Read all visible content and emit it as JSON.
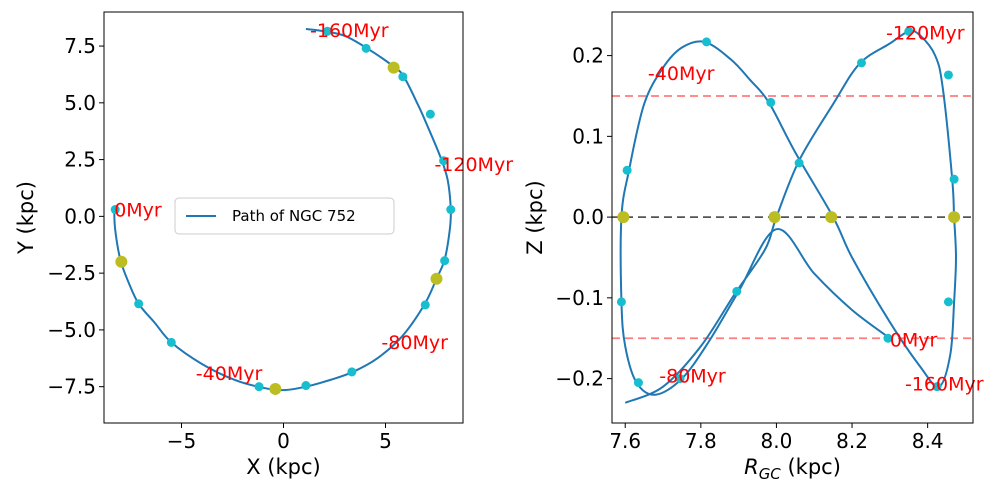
{
  "colors": {
    "path": "#1f77b4",
    "marker": "#17becf",
    "crossing": "#bcbd22",
    "annotation": "#ff0000",
    "zero_line": "#555555",
    "limit_line": "#ff6666"
  },
  "chart_data": [
    {
      "type": "line",
      "panel": "left",
      "xlabel": "X (kpc)",
      "ylabel": "Y (kpc)",
      "xlim": [
        -8.8,
        8.8
      ],
      "ylim": [
        -9.1,
        9.0
      ],
      "xticks": [
        -5,
        0,
        5
      ],
      "xtick_labels": [
        "−5",
        "0",
        "5"
      ],
      "yticks": [
        7.5,
        5.0,
        2.5,
        0.0,
        -2.5,
        -5.0,
        -7.5
      ],
      "ytick_labels": [
        "7.5",
        "5.0",
        "2.5",
        "0.0",
        "−2.5",
        "−5.0",
        "−7.5"
      ],
      "legend": {
        "label": "Path of NGC 752",
        "placement": "center"
      },
      "series": [
        {
          "name": "Path of NGC 752",
          "points": [
            [
              -8.3,
              0.3
            ],
            [
              -8.25,
              -0.6
            ],
            [
              -8.0,
              -1.9
            ],
            [
              -7.6,
              -2.9
            ],
            [
              -7.1,
              -3.85
            ],
            [
              -6.3,
              -4.7
            ],
            [
              -5.5,
              -5.55
            ],
            [
              -4.0,
              -6.5
            ],
            [
              -2.4,
              -7.2
            ],
            [
              -1.0,
              -7.55
            ],
            [
              0.0,
              -7.65
            ],
            [
              1.1,
              -7.5
            ],
            [
              2.3,
              -7.2
            ],
            [
              3.4,
              -6.85
            ],
            [
              4.6,
              -6.25
            ],
            [
              5.8,
              -5.3
            ],
            [
              6.9,
              -3.9
            ],
            [
              7.5,
              -2.75
            ],
            [
              7.9,
              -1.9
            ],
            [
              8.15,
              -0.6
            ],
            [
              8.2,
              0.3
            ],
            [
              8.05,
              1.6
            ],
            [
              7.7,
              2.6
            ],
            [
              7.0,
              4.1
            ],
            [
              6.6,
              4.9
            ],
            [
              5.9,
              6.15
            ],
            [
              5.4,
              6.6
            ],
            [
              4.1,
              7.4
            ],
            [
              3.0,
              7.95
            ],
            [
              2.0,
              8.15
            ],
            [
              1.1,
              8.25
            ]
          ],
          "markers": [
            [
              -8.25,
              0.3
            ],
            [
              -7.1,
              -3.85
            ],
            [
              -5.5,
              -5.55
            ],
            [
              -1.2,
              -7.5
            ],
            [
              1.1,
              -7.45
            ],
            [
              3.35,
              -6.85
            ],
            [
              6.95,
              -3.9
            ],
            [
              7.9,
              -1.95
            ],
            [
              8.2,
              0.3
            ],
            [
              7.85,
              2.45
            ],
            [
              7.2,
              4.5
            ],
            [
              5.85,
              6.15
            ],
            [
              4.05,
              7.4
            ],
            [
              2.15,
              8.15
            ]
          ],
          "crossings": [
            [
              -7.95,
              -2.0
            ],
            [
              -0.4,
              -7.6
            ],
            [
              7.5,
              -2.75
            ],
            [
              5.4,
              6.55
            ]
          ]
        }
      ],
      "annotations": [
        {
          "text": "0Myr",
          "x": -8.3,
          "y": 0.0
        },
        {
          "text": "-40Myr",
          "x": -4.3,
          "y": -7.2
        },
        {
          "text": "-80Myr",
          "x": 4.8,
          "y": -5.85
        },
        {
          "text": "-120Myr",
          "x": 7.4,
          "y": 2.0
        },
        {
          "text": "-160Myr",
          "x": 1.3,
          "y": 7.9
        }
      ]
    },
    {
      "type": "line",
      "panel": "right",
      "xlabel": "R_GC (kpc)",
      "ylabel": "Z (kpc)",
      "xlim": [
        7.565,
        8.52
      ],
      "ylim": [
        -0.255,
        0.254
      ],
      "xticks": [
        7.6,
        7.8,
        8.0,
        8.2,
        8.4
      ],
      "xtick_labels": [
        "7.6",
        "7.8",
        "8.0",
        "8.2",
        "8.4"
      ],
      "yticks": [
        0.2,
        0.1,
        0.0,
        -0.1,
        -0.2
      ],
      "ytick_labels": [
        "0.2",
        "0.1",
        "0.0",
        "−0.1",
        "−0.2"
      ],
      "reference_lines": [
        {
          "y": 0.0,
          "style": "dashed",
          "color": "zero_line"
        },
        {
          "y": 0.15,
          "style": "dashed",
          "color": "limit_line"
        },
        {
          "y": -0.15,
          "style": "dashed",
          "color": "limit_line"
        }
      ],
      "series": [
        {
          "name": "Path of NGC 752",
          "points": [
            [
              8.3,
              -0.15
            ],
            [
              8.2,
              -0.115
            ],
            [
              8.1,
              -0.07
            ],
            [
              8.0,
              -0.015
            ],
            [
              7.9,
              -0.092
            ],
            [
              7.82,
              -0.155
            ],
            [
              7.75,
              -0.2
            ],
            [
              7.68,
              -0.22
            ],
            [
              7.63,
              -0.205
            ],
            [
              7.6,
              -0.16
            ],
            [
              7.59,
              -0.105
            ],
            [
              7.59,
              0.0
            ],
            [
              7.61,
              0.058
            ],
            [
              7.65,
              0.14
            ],
            [
              7.7,
              0.185
            ],
            [
              7.75,
              0.21
            ],
            [
              7.81,
              0.217
            ],
            [
              7.88,
              0.195
            ],
            [
              7.93,
              0.17
            ],
            [
              7.98,
              0.142
            ],
            [
              8.05,
              0.08
            ],
            [
              8.15,
              0.0
            ],
            [
              8.2,
              -0.05
            ],
            [
              8.3,
              -0.13
            ],
            [
              8.38,
              -0.185
            ],
            [
              8.43,
              -0.21
            ],
            [
              8.46,
              -0.17
            ],
            [
              8.47,
              -0.105
            ],
            [
              8.475,
              -0.05
            ],
            [
              8.47,
              0.0
            ],
            [
              8.465,
              0.047
            ],
            [
              8.44,
              0.16
            ],
            [
              8.42,
              0.2
            ],
            [
              8.38,
              0.225
            ],
            [
              8.35,
              0.23
            ],
            [
              8.3,
              0.215
            ],
            [
              8.22,
              0.19
            ],
            [
              8.15,
              0.14
            ],
            [
              8.06,
              0.07
            ],
            [
              8.0,
              0.0
            ],
            [
              7.97,
              -0.04
            ],
            [
              7.89,
              -0.095
            ],
            [
              7.8,
              -0.16
            ],
            [
              7.7,
              -0.21
            ],
            [
              7.6,
              -0.23
            ]
          ],
          "markers": [
            [
              8.295,
              -0.15
            ],
            [
              7.895,
              -0.092
            ],
            [
              7.745,
              -0.2
            ],
            [
              7.635,
              -0.205
            ],
            [
              7.59,
              -0.105
            ],
            [
              7.605,
              0.058
            ],
            [
              7.815,
              0.217
            ],
            [
              7.985,
              0.142
            ],
            [
              8.06,
              0.067
            ],
            [
              8.225,
              0.191
            ],
            [
              8.35,
              0.23
            ],
            [
              8.455,
              0.176
            ],
            [
              8.47,
              0.047
            ],
            [
              8.455,
              -0.105
            ],
            [
              8.425,
              -0.21
            ]
          ],
          "crossings": [
            [
              7.595,
              0.0
            ],
            [
              7.995,
              0.0
            ],
            [
              8.145,
              0.0
            ],
            [
              8.47,
              0.0
            ]
          ]
        }
      ],
      "annotations": [
        {
          "text": "0Myr",
          "x": 8.3,
          "y": -0.16
        },
        {
          "text": "-40Myr",
          "x": 7.66,
          "y": 0.17
        },
        {
          "text": "-80Myr",
          "x": 7.69,
          "y": -0.205
        },
        {
          "text": "-120Myr",
          "x": 8.29,
          "y": 0.22
        },
        {
          "text": "-160Myr",
          "x": 8.34,
          "y": -0.215
        }
      ]
    }
  ]
}
